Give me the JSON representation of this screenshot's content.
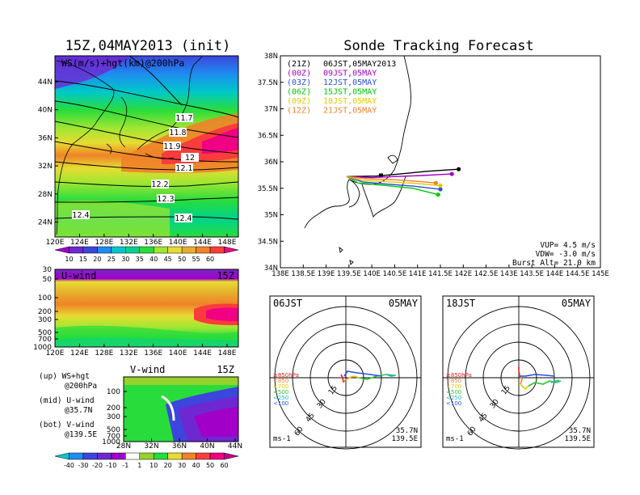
{
  "left": {
    "title": "15Z,04MAY2013 (init)",
    "map": {
      "label": "WS(m/s)+hgt(km)@200hPa",
      "lat_ticks": [
        "44N",
        "40N",
        "36N",
        "32N",
        "28N",
        "24N"
      ],
      "lon_ticks": [
        "120E",
        "124E",
        "128E",
        "132E",
        "136E",
        "140E",
        "144E",
        "148E"
      ],
      "contour_labels": [
        "11.7",
        "11.8",
        "11.9",
        "12",
        "12.1",
        "12.2",
        "12.3",
        "12.4",
        "12.4"
      ],
      "colorbar_ticks": [
        "10",
        "15",
        "20",
        "25",
        "30",
        "35",
        "40",
        "45",
        "50",
        "55",
        "60"
      ],
      "colorbar_colors": [
        "#a000c8",
        "#6e28d2",
        "#3c46dc",
        "#1e8cf0",
        "#00c8c8",
        "#00d28c",
        "#28dc3c",
        "#a0e632",
        "#e6dc32",
        "#e6af2d",
        "#f08228",
        "#fa3c3c",
        "#f00082"
      ]
    },
    "uwind": {
      "label": "U-wind",
      "time": "15Z",
      "levels": [
        "30",
        "50",
        "100",
        "200",
        "300",
        "500",
        "700",
        "1000"
      ],
      "lon_ticks": [
        "120E",
        "124E",
        "128E",
        "132E",
        "136E",
        "140E",
        "144E",
        "148E"
      ]
    },
    "vwind": {
      "label": "V-wind",
      "time": "15Z",
      "levels": [
        "100",
        "200",
        "300",
        "500",
        "700",
        "1000"
      ],
      "lat_ticks": [
        "28N",
        "32N",
        "36N",
        "40N",
        "44N"
      ],
      "colorbar_ticks": [
        "-40",
        "-30",
        "-20",
        "-10",
        "-1",
        "1",
        "10",
        "20",
        "30",
        "40",
        "50",
        "60"
      ],
      "colorbar_colors": [
        "#00c8c8",
        "#1e8cf0",
        "#3c46dc",
        "#6e28d2",
        "#a000c8",
        "#ffffff",
        "#96d22d",
        "#28dc3c",
        "#e6dc32",
        "#f08228",
        "#fa3c3c",
        "#f00082",
        "#c8008c"
      ]
    },
    "legend_notes": [
      {
        "line1": "(up) WS+hgt",
        "line2": "@200hPa"
      },
      {
        "line1": "(mid) U-wind",
        "line2": "@35.7N"
      },
      {
        "line1": "(bot) V-wind",
        "line2": "@139.5E"
      }
    ]
  },
  "right": {
    "title": "Sonde Tracking Forecast",
    "track_map": {
      "lat_ticks": [
        "38N",
        "37.5N",
        "37N",
        "36.5N",
        "36N",
        "35.5N",
        "35N",
        "34.5N",
        "34N"
      ],
      "lon_ticks": [
        "138E",
        "138.5E",
        "139E",
        "139.5E",
        "140E",
        "140.5E",
        "141E",
        "141.5E",
        "142E",
        "142.5E",
        "143E",
        "143.5E",
        "144E",
        "144.5E",
        "145E"
      ],
      "legend": [
        {
          "code": "(21Z)",
          "text": "06JST,05MAY2013",
          "color": "#000000"
        },
        {
          "code": "(00Z)",
          "text": "09JST,05MAY",
          "color": "#a000c8"
        },
        {
          "code": "(03Z)",
          "text": "12JST,05MAY",
          "color": "#2850dc"
        },
        {
          "code": "(06Z)",
          "text": "15JST,05MAY",
          "color": "#00c800"
        },
        {
          "code": "(09Z)",
          "text": "18JST,05MAY",
          "color": "#e6c800"
        },
        {
          "code": "(12Z)",
          "text": "21JST,05MAY",
          "color": "#f08228"
        }
      ],
      "params": [
        "VUP=  4.5  m/s",
        "VDW= -3.0  m/s",
        "Burst Alt=  21.0  km"
      ]
    },
    "hodographs": [
      {
        "time": "06JST",
        "date": "05MAY",
        "ring_labels": [
          "15",
          "30",
          "45",
          "60"
        ],
        "unit": "ms-1",
        "lat": "35.7N",
        "lon": "139.5E",
        "levels": [
          {
            "t": "≥850hPa",
            "c": "#e61e1e"
          },
          {
            "t": "<850",
            "c": "#f08228"
          },
          {
            "t": "<700",
            "c": "#e6c800"
          },
          {
            "t": "<500",
            "c": "#28c828"
          },
          {
            "t": "<250",
            "c": "#1eb4c8"
          },
          {
            "t": "<100",
            "c": "#2850dc"
          }
        ]
      },
      {
        "time": "18JST",
        "date": "05MAY",
        "ring_labels": [
          "15",
          "30",
          "45",
          "60"
        ],
        "unit": "ms-1",
        "lat": "35.7N",
        "lon": "139.5E",
        "levels": [
          {
            "t": "≥850hPa",
            "c": "#e61e1e"
          },
          {
            "t": "<850",
            "c": "#f08228"
          },
          {
            "t": "<700",
            "c": "#e6c800"
          },
          {
            "t": "<500",
            "c": "#28c828"
          },
          {
            "t": "<250",
            "c": "#1eb4c8"
          },
          {
            "t": "<100",
            "c": "#2850dc"
          }
        ]
      }
    ]
  }
}
